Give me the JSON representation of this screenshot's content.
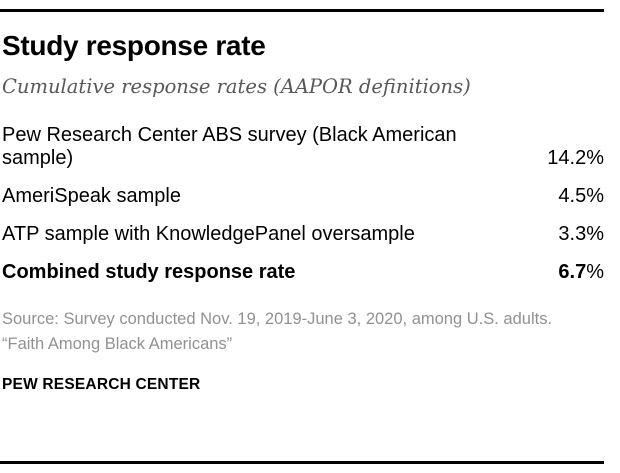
{
  "chart_data": {
    "type": "table",
    "title": "Study response rate",
    "subtitle": "Cumulative response rates (AAPOR definitions)",
    "unit": "%",
    "rows": [
      {
        "label": "Pew Research Center ABS survey (Black American sample)",
        "value": "14.2%",
        "value_numeric": 14.2,
        "emphasis": false
      },
      {
        "label": "AmeriSpeak sample",
        "value": "4.5%",
        "value_numeric": 4.5,
        "emphasis": false
      },
      {
        "label": "ATP sample with KnowledgePanel oversample",
        "value": "3.3%",
        "value_numeric": 3.3,
        "emphasis": false
      },
      {
        "label": "Combined study response rate",
        "value": "6.7%",
        "value_num": "6.7",
        "value_pct": "%",
        "value_numeric": 6.7,
        "emphasis": true
      }
    ]
  },
  "footer": {
    "source": "Source: Survey conducted Nov. 19, 2019-June 3, 2020, among U.S. adults.",
    "report_title": "“Faith Among Black Americans”",
    "brand": "PEW RESEARCH CENTER"
  },
  "colors": {
    "rule": "#000000",
    "title_text": "#000000",
    "subtitle_text": "#58585a",
    "body_text": "#000000",
    "footer_text": "#919191"
  }
}
